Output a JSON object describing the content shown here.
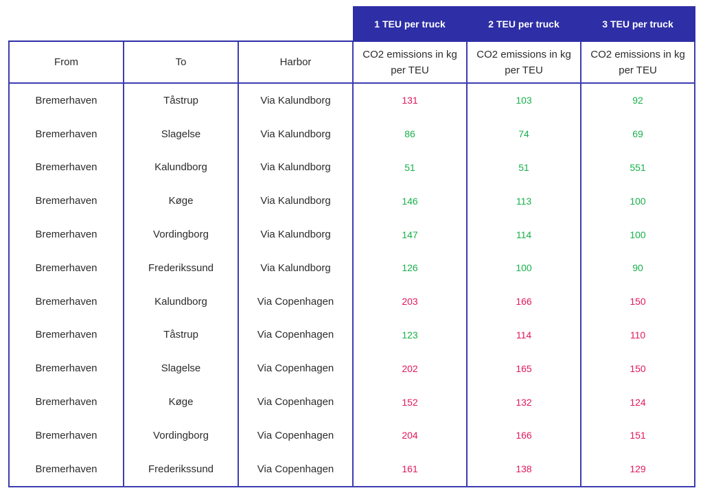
{
  "headers": {
    "top": [
      "1 TEU per truck",
      "2 TEU per truck",
      "3 TEU per truck"
    ],
    "from": "From",
    "to": "To",
    "harbor": "Harbor",
    "metric": "CO2 emissions in kg per TEU"
  },
  "colors": {
    "accent": "#2e2ea6",
    "low_emission": "#17b04a",
    "high_emission": "#e0185a"
  },
  "rows": [
    {
      "from": "Bremerhaven",
      "to": "Tåstrup",
      "harbor": "Via Kalundborg",
      "v1": "131",
      "v2": "103",
      "v3": "92",
      "c1": "red",
      "c2": "green",
      "c3": "green"
    },
    {
      "from": "Bremerhaven",
      "to": "Slagelse",
      "harbor": "Via Kalundborg",
      "v1": "86",
      "v2": "74",
      "v3": "69",
      "c1": "green",
      "c2": "green",
      "c3": "green"
    },
    {
      "from": "Bremerhaven",
      "to": "Kalundborg",
      "harbor": "Via Kalundborg",
      "v1": "51",
      "v2": "51",
      "v3": "551",
      "c1": "green",
      "c2": "green",
      "c3": "green"
    },
    {
      "from": "Bremerhaven",
      "to": "Køge",
      "harbor": "Via Kalundborg",
      "v1": "146",
      "v2": "113",
      "v3": "100",
      "c1": "green",
      "c2": "green",
      "c3": "green"
    },
    {
      "from": "Bremerhaven",
      "to": "Vordingborg",
      "harbor": "Via Kalundborg",
      "v1": "147",
      "v2": "114",
      "v3": "100",
      "c1": "green",
      "c2": "green",
      "c3": "green"
    },
    {
      "from": "Bremerhaven",
      "to": "Frederikssund",
      "harbor": "Via Kalundborg",
      "v1": "126",
      "v2": "100",
      "v3": "90",
      "c1": "green",
      "c2": "green",
      "c3": "green"
    },
    {
      "from": "Bremerhaven",
      "to": "Kalundborg",
      "harbor": "Via Copenhagen",
      "v1": "203",
      "v2": "166",
      "v3": "150",
      "c1": "red",
      "c2": "red",
      "c3": "red"
    },
    {
      "from": "Bremerhaven",
      "to": "Tåstrup",
      "harbor": "Via Copenhagen",
      "v1": "123",
      "v2": "114",
      "v3": "110",
      "c1": "green",
      "c2": "red",
      "c3": "red"
    },
    {
      "from": "Bremerhaven",
      "to": "Slagelse",
      "harbor": "Via Copenhagen",
      "v1": "202",
      "v2": "165",
      "v3": "150",
      "c1": "red",
      "c2": "red",
      "c3": "red"
    },
    {
      "from": "Bremerhaven",
      "to": "Køge",
      "harbor": "Via Copenhagen",
      "v1": "152",
      "v2": "132",
      "v3": "124",
      "c1": "red",
      "c2": "red",
      "c3": "red"
    },
    {
      "from": "Bremerhaven",
      "to": "Vordingborg",
      "harbor": "Via Copenhagen",
      "v1": "204",
      "v2": "166",
      "v3": "151",
      "c1": "red",
      "c2": "red",
      "c3": "red"
    },
    {
      "from": "Bremerhaven",
      "to": "Frederikssund",
      "harbor": "Via Copenhagen",
      "v1": "161",
      "v2": "138",
      "v3": "129",
      "c1": "red",
      "c2": "red",
      "c3": "red"
    }
  ]
}
